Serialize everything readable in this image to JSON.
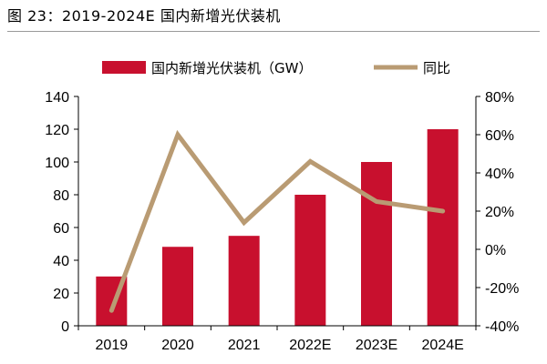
{
  "figure": {
    "title": "图 23：2019-2024E 国内新增光伏装机"
  },
  "colors": {
    "bar": "#c8102e",
    "line": "#b99b73",
    "axis": "#000000"
  },
  "chart_data": {
    "type": "bar",
    "title": "",
    "categories": [
      "2019",
      "2020",
      "2021",
      "2022E",
      "2023E",
      "2024E"
    ],
    "series": [
      {
        "name": "国内新增光伏装机（GW）",
        "kind": "bar",
        "axis": "left",
        "values": [
          30.1,
          48.2,
          54.9,
          80,
          100,
          120
        ]
      },
      {
        "name": "同比",
        "kind": "line",
        "axis": "right",
        "values": [
          -32,
          60,
          14,
          46,
          25,
          20
        ]
      }
    ],
    "y_left": {
      "range": [
        0,
        140
      ],
      "ticks": [
        0,
        20,
        40,
        60,
        80,
        100,
        120,
        140
      ],
      "tick_labels": [
        "0",
        "20",
        "40",
        "60",
        "80",
        "100",
        "120",
        "140"
      ]
    },
    "y_right": {
      "range": [
        -40,
        80
      ],
      "ticks": [
        -40,
        -20,
        0,
        20,
        40,
        60,
        80
      ],
      "tick_labels": [
        "-40%",
        "-20%",
        "0%",
        "20%",
        "40%",
        "60%",
        "80%"
      ]
    },
    "legend_position": "top",
    "grid": false
  }
}
